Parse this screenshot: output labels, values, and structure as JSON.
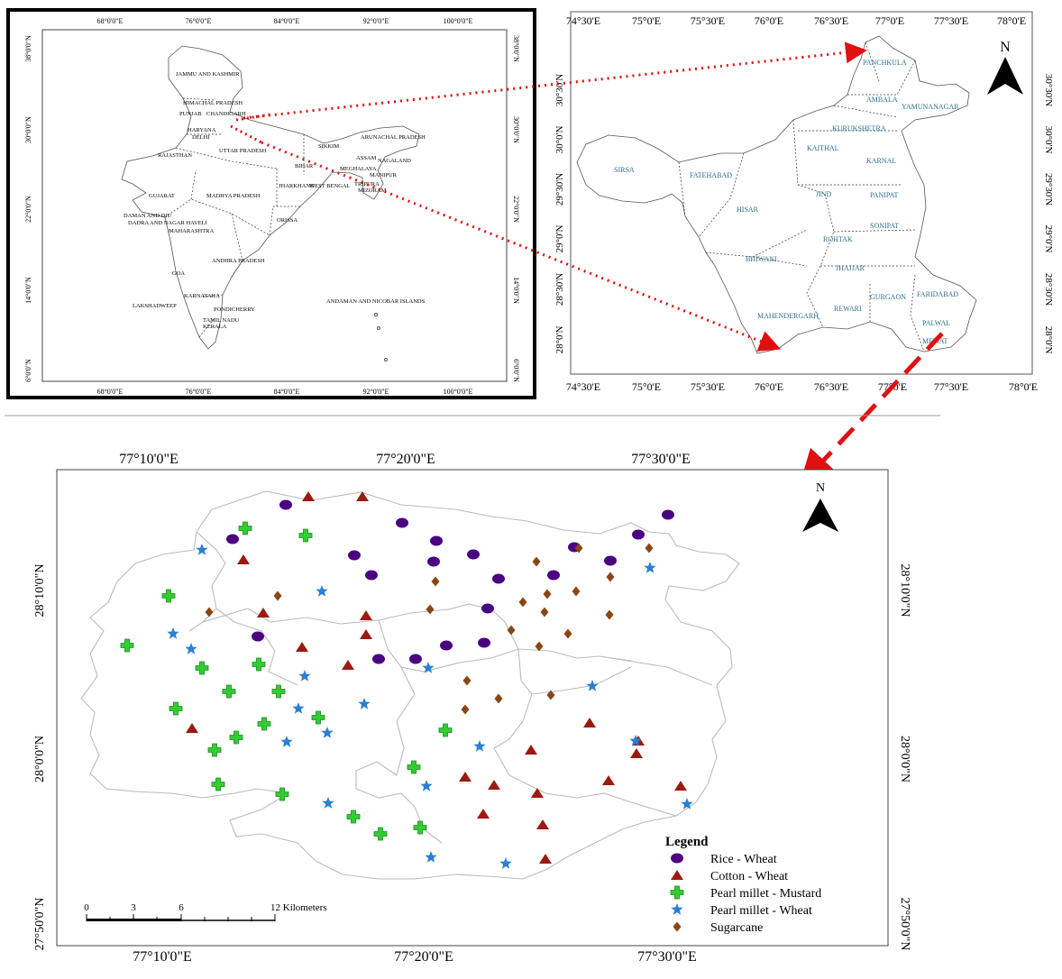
{
  "india_map": {
    "lon_ticks": [
      "68°0'0\"E",
      "76°0'0\"E",
      "84°0'0\"E",
      "92°0'0\"E",
      "100°0'0\"E"
    ],
    "lat_ticks": [
      "38°0'0\"N",
      "30°0'0\"N",
      "22°0'0\"N",
      "14°0'0\"N",
      "6°0'0\"N"
    ],
    "states": [
      "JAMMU AND KASHMIR",
      "HIMACHAL PRADESH",
      "PUNJAB",
      "CHANDIGARH",
      "HARYANA",
      "DELHI",
      "UTTAR PRADESH",
      "RAJASTHAN",
      "SIKKIM",
      "ARUNACHAL PRADESH",
      "ASSAM",
      "NAGALAND",
      "MEGHALAYA",
      "BIHAR",
      "MANIPUR",
      "JHARKHAND",
      "WEST BENGAL",
      "TRIPURA",
      "MIZORAM",
      "GUJARAT",
      "MADHYA PRADESH",
      "DAMAN AND DIU",
      "DADRA AND NAGAR HAVELI",
      "ORISSA",
      "MAHARASHTRA",
      "ANDHRA PRADESH",
      "GOA",
      "KARNATAKA",
      "LAKSHADWEEP",
      "PONDICHERRY",
      "TAMIL NADU",
      "KERALA",
      "ANDAMAN AND NICOBAR ISLANDS"
    ]
  },
  "haryana_map": {
    "lon_ticks": [
      "74°30'E",
      "75°0'E",
      "75°30'E",
      "76°0'E",
      "76°30'E",
      "77°0'E",
      "77°30'E",
      "78°0'E"
    ],
    "lat_ticks": [
      "30°30'N",
      "30°0'N",
      "29°30'N",
      "29°0'N",
      "28°30'N",
      "28°0'N"
    ],
    "north": "N",
    "districts": [
      "PANCHKULA",
      "AMBALA",
      "YAMUNANAGAR",
      "KURUKSHETRA",
      "KAITHAL",
      "KARNAL",
      "SIRSA",
      "FATEHABAD",
      "JIND",
      "PANIPAT",
      "HISAR",
      "SONIPAT",
      "ROHTAK",
      "BHIWANI",
      "JHAJJAR",
      "GURGAON",
      "FARIDABAD",
      "MAHENDERGARH",
      "REWARI",
      "PALWAL",
      "MEWAT"
    ]
  },
  "study_map": {
    "lon_ticks": [
      "77°10'0\"E",
      "77°20'0\"E",
      "77°30'0\"E"
    ],
    "lat_ticks": [
      "28°10'0\"N",
      "28°0'0\"N",
      "27°50'0\"N"
    ],
    "north": "N",
    "legend": {
      "title": "Legend",
      "items": [
        {
          "label": "Rice - Wheat",
          "symbol": "circle",
          "color": "#4b0082"
        },
        {
          "label": "Cotton - Wheat",
          "symbol": "triangle",
          "color": "#9b1b12"
        },
        {
          "label": "Pearl millet - Mustard",
          "symbol": "cross",
          "color": "#33cc33"
        },
        {
          "label": "Pearl millet - Wheat",
          "symbol": "star",
          "color": "#2a7fd4"
        },
        {
          "label": "Sugarcane",
          "symbol": "diamond",
          "color": "#8b4513"
        }
      ]
    },
    "scale": {
      "ticks": [
        "0",
        "3",
        "6",
        "12 Kilometers"
      ]
    },
    "arrow_color": "#e01010",
    "points": {
      "rice_wheat": [
        [
          317,
          560
        ],
        [
          446,
          580
        ],
        [
          258,
          598
        ],
        [
          393,
          616
        ],
        [
          484,
          600
        ],
        [
          525,
          615
        ],
        [
          637,
          607
        ],
        [
          677,
          622
        ],
        [
          708,
          593
        ],
        [
          741,
          571
        ],
        [
          412,
          638
        ],
        [
          481,
          623
        ],
        [
          553,
          642
        ],
        [
          614,
          638
        ],
        [
          541,
          675
        ],
        [
          286,
          706
        ],
        [
          420,
          731
        ],
        [
          461,
          731
        ],
        [
          495,
          716
        ],
        [
          537,
          713
        ]
      ],
      "cotton_wheat": [
        [
          342,
          551
        ],
        [
          402,
          551
        ],
        [
          270,
          621
        ],
        [
          292,
          680
        ],
        [
          406,
          683
        ],
        [
          335,
          718
        ],
        [
          406,
          704
        ],
        [
          386,
          738
        ],
        [
          213,
          808
        ],
        [
          589,
          832
        ],
        [
          654,
          802
        ],
        [
          708,
          822
        ],
        [
          706,
          836
        ],
        [
          516,
          862
        ],
        [
          548,
          871
        ],
        [
          596,
          880
        ],
        [
          675,
          866
        ],
        [
          755,
          872
        ],
        [
          536,
          903
        ],
        [
          602,
          915
        ],
        [
          605,
          953
        ]
      ],
      "pearl_millet_mustard": [
        [
          272,
          586
        ],
        [
          339,
          594
        ],
        [
          187,
          661
        ],
        [
          141,
          716
        ],
        [
          224,
          741
        ],
        [
          287,
          737
        ],
        [
          254,
          767
        ],
        [
          309,
          767
        ],
        [
          195,
          786
        ],
        [
          353,
          796
        ],
        [
          293,
          803
        ],
        [
          262,
          818
        ],
        [
          238,
          832
        ],
        [
          494,
          810
        ],
        [
          242,
          870
        ],
        [
          313,
          881
        ],
        [
          459,
          851
        ],
        [
          392,
          906
        ],
        [
          422,
          925
        ],
        [
          466,
          918
        ]
      ],
      "pearl_millet_wheat": [
        [
          224,
          610
        ],
        [
          357,
          656
        ],
        [
          192,
          703
        ],
        [
          212,
          720
        ],
        [
          721,
          630
        ],
        [
          338,
          750
        ],
        [
          331,
          786
        ],
        [
          404,
          781
        ],
        [
          363,
          813
        ],
        [
          318,
          823
        ],
        [
          475,
          741
        ],
        [
          657,
          761
        ],
        [
          705,
          822
        ],
        [
          532,
          828
        ],
        [
          473,
          872
        ],
        [
          364,
          891
        ],
        [
          762,
          892
        ],
        [
          478,
          951
        ],
        [
          561,
          958
        ]
      ],
      "sugarcane": [
        [
          642,
          608
        ],
        [
          720,
          608
        ],
        [
          595,
          623
        ],
        [
          483,
          645
        ],
        [
          580,
          668
        ],
        [
          607,
          659
        ],
        [
          639,
          656
        ],
        [
          677,
          640
        ],
        [
          308,
          661
        ],
        [
          477,
          676
        ],
        [
          232,
          679
        ],
        [
          567,
          699
        ],
        [
          604,
          679
        ],
        [
          630,
          703
        ],
        [
          676,
          682
        ],
        [
          598,
          717
        ],
        [
          518,
          755
        ],
        [
          553,
          775
        ],
        [
          611,
          771
        ],
        [
          516,
          787
        ]
      ]
    }
  }
}
